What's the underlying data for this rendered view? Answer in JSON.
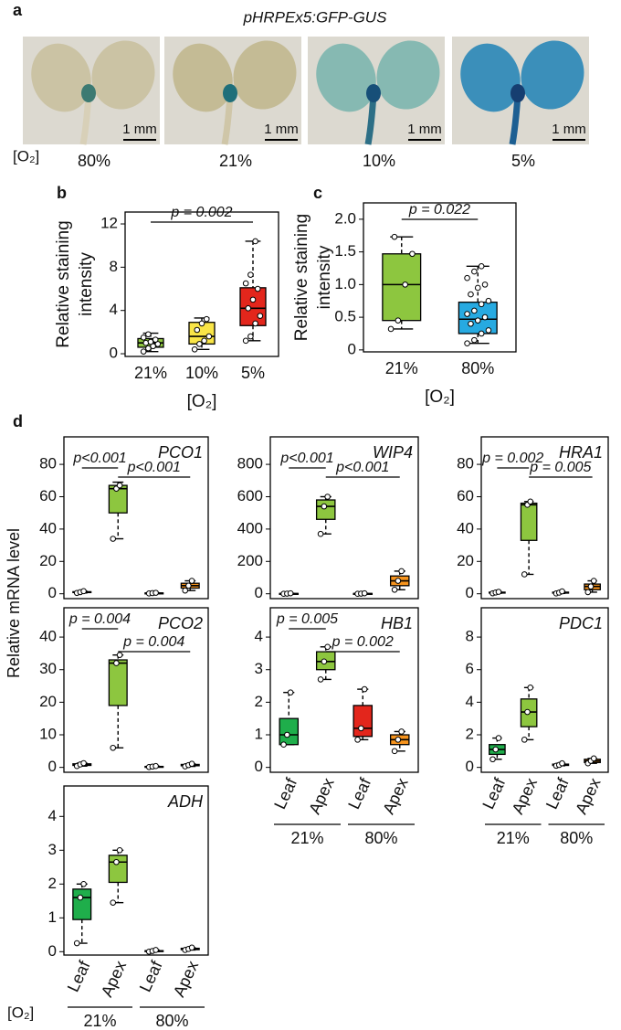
{
  "panel_a": {
    "label": "a",
    "title": "pHRPEx5:GFP-GUS",
    "o2_label": "[O₂]",
    "photos": [
      {
        "scale_bar": "1 mm",
        "o2": "80%"
      },
      {
        "scale_bar": "1 mm",
        "o2": "21%"
      },
      {
        "scale_bar": "1 mm",
        "o2": "10%"
      },
      {
        "scale_bar": "1 mm",
        "o2": "5%"
      }
    ]
  },
  "panel_d": {
    "label": "d",
    "ylabel": "Relative mRNA level"
  },
  "chart_data": [
    {
      "type": "box",
      "panel_label": "b",
      "ylabel": [
        "Relative staining",
        "intensity"
      ],
      "xlabel": "[O₂]",
      "categories": [
        "21%",
        "10%",
        "5%"
      ],
      "ylim": [
        -0.25,
        13.1
      ],
      "yticks": [
        0,
        4,
        8,
        12
      ],
      "boxes": [
        {
          "color": "#8dc63f",
          "min": 0.2,
          "q1": 0.6,
          "median": 1.0,
          "q3": 1.4,
          "max": 1.9,
          "points": [
            0.2,
            0.5,
            0.7,
            0.9,
            1.0,
            1.1,
            1.3,
            1.5,
            1.8
          ]
        },
        {
          "color": "#f9e547",
          "min": 0.4,
          "q1": 0.9,
          "median": 1.6,
          "q3": 2.9,
          "max": 3.3,
          "points": [
            0.4,
            0.9,
            1.2,
            1.6,
            2.2,
            2.8,
            3.2
          ]
        },
        {
          "color": "#e3261c",
          "min": 1.2,
          "q1": 2.6,
          "median": 4.2,
          "q3": 6.1,
          "max": 10.4,
          "points": [
            1.2,
            1.6,
            2.8,
            3.5,
            4.2,
            5.0,
            6.0,
            6.5,
            7.3,
            10.4
          ]
        }
      ],
      "annotations": [
        {
          "text": "p = 0.002",
          "between": [
            0,
            2
          ]
        }
      ]
    },
    {
      "type": "box",
      "panel_label": "c",
      "ylabel": [
        "Relative staining",
        "intensity"
      ],
      "xlabel": "[O₂]",
      "categories": [
        "21%",
        "80%"
      ],
      "ylim": [
        -0.03,
        2.25
      ],
      "yticks": [
        0,
        0.5,
        {
          "value": 1,
          "label": "1.0"
        },
        1.5,
        {
          "value": 2,
          "label": "2.0"
        }
      ],
      "boxes": [
        {
          "color": "#8dc63f",
          "min": 0.32,
          "q1": 0.45,
          "median": 1.0,
          "q3": 1.47,
          "max": 1.73,
          "points": [
            0.32,
            0.45,
            1.0,
            1.47,
            1.73
          ]
        },
        {
          "color": "#27aae1",
          "min": 0.1,
          "q1": 0.25,
          "median": 0.47,
          "q3": 0.73,
          "max": 1.28,
          "points": [
            0.1,
            0.15,
            0.25,
            0.3,
            0.4,
            0.45,
            0.5,
            0.55,
            0.6,
            0.7,
            0.75,
            0.85,
            0.95,
            1.0,
            1.1,
            1.2,
            1.28
          ]
        }
      ],
      "annotations": [
        {
          "text": "p = 0.022",
          "between": [
            0,
            1
          ]
        }
      ]
    },
    {
      "type": "box",
      "title": "PCO1",
      "ylim": [
        -3,
        97
      ],
      "yticks": [
        0,
        20,
        40,
        60,
        80
      ],
      "boxes": [
        {
          "color": "#1fae4b",
          "min": 0.5,
          "q1": 0.8,
          "median": 1,
          "q3": 1.3,
          "max": 1.6,
          "points": [
            0.5,
            1,
            1.6
          ]
        },
        {
          "color": "#8dc63f",
          "min": 34,
          "q1": 50,
          "median": 65,
          "q3": 67,
          "max": 69,
          "points": [
            34,
            65,
            67
          ]
        },
        {
          "color": "#e3261c",
          "min": 0.2,
          "q1": 0.3,
          "median": 0.4,
          "q3": 0.5,
          "max": 0.6,
          "points": [
            0.2,
            0.4,
            0.6
          ]
        },
        {
          "color": "#f7941d",
          "min": 2,
          "q1": 3.5,
          "median": 5,
          "q3": 6.5,
          "max": 8,
          "points": [
            2,
            5,
            8
          ]
        }
      ],
      "annotations": [
        {
          "text": "p<0.001",
          "between": [
            0,
            1
          ]
        },
        {
          "text": "p<0.001",
          "between": [
            1,
            3
          ]
        }
      ]
    },
    {
      "type": "box",
      "title": "WIP4",
      "ylim": [
        -30,
        970
      ],
      "yticks": [
        0,
        200,
        400,
        600,
        800
      ],
      "boxes": [
        {
          "color": "#1fae4b",
          "min": 0,
          "q1": 0,
          "median": 1,
          "q3": 2,
          "max": 3,
          "points": [
            0,
            1,
            3
          ]
        },
        {
          "color": "#8dc63f",
          "min": 370,
          "q1": 460,
          "median": 540,
          "q3": 580,
          "max": 600,
          "points": [
            370,
            540,
            600
          ]
        },
        {
          "color": "#e3261c",
          "min": 0,
          "q1": 0,
          "median": 1,
          "q3": 2,
          "max": 3,
          "points": [
            0,
            1,
            3
          ]
        },
        {
          "color": "#f7941d",
          "min": 25,
          "q1": 50,
          "median": 80,
          "q3": 110,
          "max": 140,
          "points": [
            25,
            80,
            140
          ]
        }
      ],
      "annotations": [
        {
          "text": "p<0.001",
          "between": [
            0,
            1
          ]
        },
        {
          "text": "p<0.001",
          "between": [
            1,
            3
          ]
        }
      ]
    },
    {
      "type": "box",
      "title": "HRA1",
      "ylim": [
        -3,
        97
      ],
      "yticks": [
        0,
        20,
        40,
        60,
        80
      ],
      "boxes": [
        {
          "color": "#1fae4b",
          "min": 0.3,
          "q1": 0.5,
          "median": 0.8,
          "q3": 1,
          "max": 1.2,
          "points": [
            0.3,
            0.8,
            1.2
          ]
        },
        {
          "color": "#8dc63f",
          "min": 12,
          "q1": 33,
          "median": 55,
          "q3": 56,
          "max": 57,
          "points": [
            12,
            55,
            57
          ]
        },
        {
          "color": "#e3261c",
          "min": 0.2,
          "q1": 0.4,
          "median": 0.7,
          "q3": 1,
          "max": 1.5,
          "points": [
            0.2,
            0.7,
            1.5
          ]
        },
        {
          "color": "#f7941d",
          "min": 1,
          "q1": 2.5,
          "median": 4.5,
          "q3": 6,
          "max": 8,
          "points": [
            1,
            4.5,
            8
          ]
        }
      ],
      "annotations": [
        {
          "text": "p = 0.002",
          "between": [
            0,
            1
          ]
        },
        {
          "text": "p = 0.005",
          "between": [
            1,
            3
          ]
        }
      ]
    },
    {
      "type": "box",
      "title": "PCO2",
      "ylim": [
        -1.5,
        49
      ],
      "yticks": [
        0,
        10,
        20,
        30,
        40
      ],
      "boxes": [
        {
          "color": "#1fae4b",
          "min": 0.4,
          "q1": 0.6,
          "median": 0.9,
          "q3": 1.1,
          "max": 1.3,
          "points": [
            0.4,
            0.9,
            1.3
          ]
        },
        {
          "color": "#8dc63f",
          "min": 6,
          "q1": 19,
          "median": 32,
          "q3": 33,
          "max": 34.5,
          "points": [
            6,
            32,
            34.5
          ]
        },
        {
          "color": "#e3261c",
          "min": 0.1,
          "q1": 0.2,
          "median": 0.25,
          "q3": 0.3,
          "max": 0.4,
          "points": [
            0.1,
            0.25,
            0.4
          ]
        },
        {
          "color": "#f7941d",
          "min": 0.3,
          "q1": 0.5,
          "median": 0.7,
          "q3": 0.9,
          "max": 1.1,
          "points": [
            0.3,
            0.7,
            1.1
          ]
        }
      ],
      "annotations": [
        {
          "text": "p = 0.004",
          "between": [
            0,
            1
          ]
        },
        {
          "text": "p = 0.004",
          "between": [
            1,
            3
          ]
        }
      ]
    },
    {
      "type": "box",
      "title": "HB1",
      "ylim": [
        -0.15,
        4.9
      ],
      "yticks": [
        0,
        1,
        2,
        3,
        4
      ],
      "categories": [
        "Leaf",
        "Apex",
        "Leaf",
        "Apex"
      ],
      "groups": [
        "21%",
        "80%"
      ],
      "boxes": [
        {
          "color": "#1fae4b",
          "min": 0.7,
          "q1": 0.7,
          "median": 1.0,
          "q3": 1.5,
          "max": 2.3,
          "points": [
            0.7,
            1.0,
            2.3
          ]
        },
        {
          "color": "#8dc63f",
          "min": 2.7,
          "q1": 3.0,
          "median": 3.25,
          "q3": 3.55,
          "max": 3.7,
          "points": [
            2.7,
            3.25,
            3.7
          ]
        },
        {
          "color": "#e3261c",
          "min": 0.85,
          "q1": 0.95,
          "median": 1.2,
          "q3": 1.9,
          "max": 2.4,
          "points": [
            0.85,
            1.2,
            2.4
          ]
        },
        {
          "color": "#f7941d",
          "min": 0.5,
          "q1": 0.7,
          "median": 0.85,
          "q3": 1.0,
          "max": 1.1,
          "points": [
            0.5,
            0.85,
            1.1
          ]
        }
      ],
      "annotations": [
        {
          "text": "p = 0.005",
          "between": [
            0,
            1
          ]
        },
        {
          "text": "p = 0.002",
          "between": [
            1,
            3
          ]
        }
      ]
    },
    {
      "type": "box",
      "title": "PDC1",
      "ylim": [
        -0.3,
        9.8
      ],
      "yticks": [
        0,
        2,
        4,
        6,
        8
      ],
      "categories": [
        "Leaf",
        "Apex",
        "Leaf",
        "Apex"
      ],
      "groups": [
        "21%",
        "80%"
      ],
      "boxes": [
        {
          "color": "#1fae4b",
          "min": 0.5,
          "q1": 0.8,
          "median": 1.1,
          "q3": 1.4,
          "max": 1.8,
          "points": [
            0.5,
            1.1,
            1.8
          ]
        },
        {
          "color": "#8dc63f",
          "min": 1.7,
          "q1": 2.5,
          "median": 3.4,
          "q3": 4.2,
          "max": 4.9,
          "points": [
            1.7,
            3.4,
            4.9
          ]
        },
        {
          "color": "#e3261c",
          "min": 0.1,
          "q1": 0.12,
          "median": 0.15,
          "q3": 0.2,
          "max": 0.25,
          "points": [
            0.1,
            0.15,
            0.25
          ]
        },
        {
          "color": "#f7941d",
          "min": 0.25,
          "q1": 0.3,
          "median": 0.4,
          "q3": 0.5,
          "max": 0.55,
          "points": [
            0.25,
            0.4,
            0.55
          ]
        }
      ]
    },
    {
      "type": "box",
      "title": "ADH",
      "ylim": [
        -0.1,
        4.9
      ],
      "yticks": [
        0,
        1,
        2,
        3,
        4
      ],
      "xlabel": "[O₂]",
      "categories": [
        "Leaf",
        "Apex",
        "Leaf",
        "Apex"
      ],
      "groups": [
        "21%",
        "80%"
      ],
      "boxes": [
        {
          "color": "#1fae4b",
          "min": 0.25,
          "q1": 0.95,
          "median": 1.6,
          "q3": 1.85,
          "max": 2.0,
          "points": [
            0.25,
            1.6,
            2.0
          ]
        },
        {
          "color": "#8dc63f",
          "min": 1.45,
          "q1": 2.05,
          "median": 2.65,
          "q3": 2.85,
          "max": 3.0,
          "points": [
            1.45,
            2.65,
            3.0
          ]
        },
        {
          "color": "#e3261c",
          "min": 0,
          "q1": 0.01,
          "median": 0.02,
          "q3": 0.03,
          "max": 0.05,
          "points": [
            0,
            0.02,
            0.05
          ]
        },
        {
          "color": "#f7941d",
          "min": 0.05,
          "q1": 0.06,
          "median": 0.08,
          "q3": 0.1,
          "max": 0.12,
          "points": [
            0.05,
            0.08,
            0.12
          ]
        }
      ]
    }
  ]
}
